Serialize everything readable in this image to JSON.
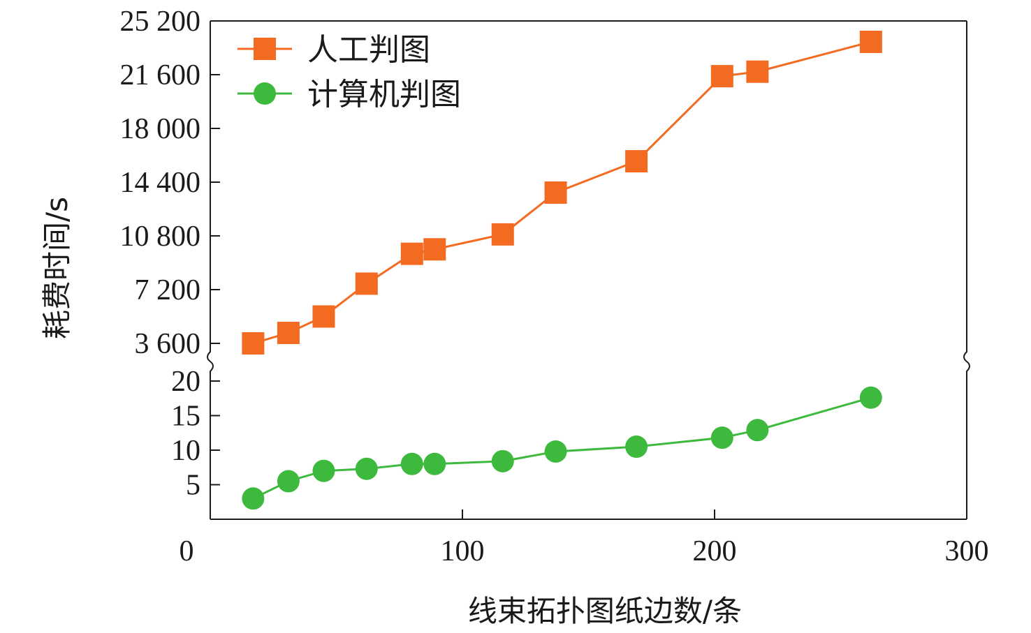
{
  "chart_data": {
    "type": "line",
    "title": "",
    "xlabel": "线束拓扑图纸边数/条",
    "ylabel": "耗费时间/s",
    "xlim": [
      0,
      300
    ],
    "x_ticks": [
      "0",
      "100",
      "200",
      "300"
    ],
    "y_axis_break": true,
    "upper_ylim": [
      3600,
      25200
    ],
    "upper_y_ticks": [
      {
        "value": 3600,
        "label": "3 600"
      },
      {
        "value": 7200,
        "label": "7 200"
      },
      {
        "value": 10800,
        "label": "10 800"
      },
      {
        "value": 14400,
        "label": "14 400"
      },
      {
        "value": 18000,
        "label": "18 000"
      },
      {
        "value": 21600,
        "label": "21 600"
      },
      {
        "value": 25200,
        "label": "25 200"
      }
    ],
    "lower_ylim": [
      0,
      20
    ],
    "lower_y_ticks": [
      {
        "value": 5,
        "label": "5"
      },
      {
        "value": 10,
        "label": "10"
      },
      {
        "value": 15,
        "label": "15"
      },
      {
        "value": 20,
        "label": "20"
      }
    ],
    "legend_position": "top-left",
    "series": [
      {
        "name": "人工判图",
        "panel": "upper",
        "marker": "square",
        "color": "#f26b21",
        "points": [
          {
            "x": 17,
            "y": 3600
          },
          {
            "x": 31,
            "y": 4300
          },
          {
            "x": 45,
            "y": 5400
          },
          {
            "x": 62,
            "y": 7600
          },
          {
            "x": 80,
            "y": 9600
          },
          {
            "x": 89,
            "y": 9900
          },
          {
            "x": 116,
            "y": 10900
          },
          {
            "x": 137,
            "y": 13700
          },
          {
            "x": 169,
            "y": 15800
          },
          {
            "x": 203,
            "y": 21500
          },
          {
            "x": 217,
            "y": 21800
          },
          {
            "x": 262,
            "y": 23800
          }
        ]
      },
      {
        "name": "计算机判图",
        "panel": "lower",
        "marker": "circle",
        "color": "#3dba3d",
        "points": [
          {
            "x": 17,
            "y": 3
          },
          {
            "x": 31,
            "y": 5.5
          },
          {
            "x": 45,
            "y": 7
          },
          {
            "x": 62,
            "y": 7.3
          },
          {
            "x": 80,
            "y": 8
          },
          {
            "x": 89,
            "y": 8
          },
          {
            "x": 116,
            "y": 8.4
          },
          {
            "x": 137,
            "y": 9.8
          },
          {
            "x": 169,
            "y": 10.5
          },
          {
            "x": 203,
            "y": 11.8
          },
          {
            "x": 217,
            "y": 12.9
          },
          {
            "x": 262,
            "y": 17.6
          }
        ]
      }
    ]
  }
}
